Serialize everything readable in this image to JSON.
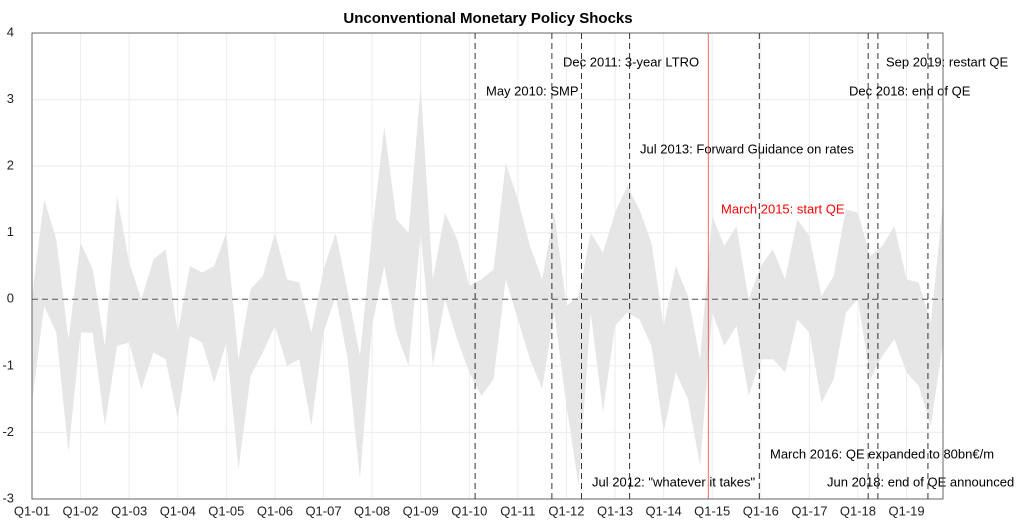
{
  "chart_data": {
    "type": "band",
    "title": "Unconventional Monetary Policy Shocks",
    "x": [
      2001,
      2001.25,
      2001.5,
      2001.75,
      2002,
      2002.25,
      2002.5,
      2002.75,
      2003,
      2003.25,
      2003.5,
      2003.75,
      2004,
      2004.25,
      2004.5,
      2004.75,
      2005,
      2005.25,
      2005.5,
      2005.75,
      2006,
      2006.25,
      2006.5,
      2006.75,
      2007,
      2007.25,
      2007.5,
      2007.75,
      2008,
      2008.25,
      2008.5,
      2008.75,
      2009,
      2009.25,
      2009.5,
      2009.75,
      2010,
      2010.25,
      2010.5,
      2010.75,
      2011,
      2011.25,
      2011.5,
      2011.75,
      2012,
      2012.25,
      2012.5,
      2012.75,
      2013,
      2013.25,
      2013.5,
      2013.75,
      2014,
      2014.25,
      2014.5,
      2014.75,
      2015,
      2015.25,
      2015.5,
      2015.75,
      2016,
      2016.25,
      2016.5,
      2016.75,
      2017,
      2017.25,
      2017.5,
      2017.75,
      2018,
      2018.25,
      2018.5,
      2018.75,
      2019,
      2019.25,
      2019.5,
      2019.75
    ],
    "upper": [
      0.05,
      1.5,
      0.9,
      -0.6,
      0.85,
      0.45,
      -0.7,
      1.55,
      0.55,
      0.0,
      0.6,
      0.75,
      -0.5,
      0.5,
      0.4,
      0.5,
      1.0,
      -0.9,
      0.15,
      0.35,
      1.0,
      0.3,
      0.25,
      -0.5,
      0.45,
      1.0,
      0.1,
      -0.85,
      1.0,
      2.6,
      1.2,
      1.0,
      3.2,
      0.3,
      1.3,
      0.9,
      0.2,
      0.3,
      0.45,
      2.05,
      1.5,
      0.8,
      0.3,
      1.3,
      -0.1,
      0.05,
      1.0,
      0.7,
      1.3,
      1.7,
      1.35,
      0.85,
      -0.4,
      0.5,
      0.05,
      -0.9,
      1.25,
      0.8,
      1.1,
      0.0,
      0.5,
      0.75,
      0.3,
      1.2,
      0.95,
      0.05,
      0.35,
      1.35,
      1.3,
      0.65,
      0.8,
      1.1,
      0.3,
      0.25,
      -0.35,
      1.45
    ],
    "lower": [
      -1.55,
      -0.1,
      -0.5,
      -2.3,
      -0.5,
      -0.5,
      -1.9,
      -0.7,
      -0.65,
      -1.35,
      -0.8,
      -0.9,
      -1.8,
      -0.55,
      -0.65,
      -1.25,
      -0.65,
      -2.55,
      -1.15,
      -0.8,
      -0.4,
      -1.0,
      -0.9,
      -1.9,
      -0.5,
      0.05,
      -0.9,
      -2.7,
      -0.4,
      0.5,
      -0.5,
      -1.0,
      1.0,
      -1.0,
      0.0,
      -0.6,
      -1.1,
      -1.45,
      -1.2,
      0.3,
      -0.3,
      -0.9,
      -1.35,
      -0.2,
      -1.6,
      -2.8,
      -0.2,
      -1.7,
      -0.4,
      -0.2,
      -0.3,
      -0.7,
      -2.0,
      -1.1,
      -1.5,
      -2.5,
      -0.2,
      -0.7,
      -0.4,
      -1.45,
      -0.9,
      -0.9,
      -1.1,
      -0.3,
      -0.5,
      -1.55,
      -1.2,
      -0.2,
      0.0,
      -1.2,
      -0.85,
      -0.6,
      -1.1,
      -1.3,
      -1.9,
      -0.65
    ],
    "color": "#e6e6e6",
    "xlim": [
      2001,
      2019.75
    ],
    "ylim": [
      -3,
      4
    ],
    "xticks": [
      {
        "value": 2001,
        "label": "Q1-01"
      },
      {
        "value": 2002,
        "label": "Q1-02"
      },
      {
        "value": 2003,
        "label": "Q1-03"
      },
      {
        "value": 2004,
        "label": "Q1-04"
      },
      {
        "value": 2005,
        "label": "Q1-05"
      },
      {
        "value": 2006,
        "label": "Q1-06"
      },
      {
        "value": 2007,
        "label": "Q1-07"
      },
      {
        "value": 2008,
        "label": "Q1-08"
      },
      {
        "value": 2009,
        "label": "Q1-09"
      },
      {
        "value": 2010,
        "label": "Q1-10"
      },
      {
        "value": 2011,
        "label": "Q1-11"
      },
      {
        "value": 2012,
        "label": "Q1-12"
      },
      {
        "value": 2013,
        "label": "Q1-13"
      },
      {
        "value": 2014,
        "label": "Q1-14"
      },
      {
        "value": 2015,
        "label": "Q1-15"
      },
      {
        "value": 2016,
        "label": "Q1-16"
      },
      {
        "value": 2017,
        "label": "Q1-17"
      },
      {
        "value": 2018,
        "label": "Q1-18"
      },
      {
        "value": 2019,
        "label": "Q1-19"
      }
    ],
    "yticks": [
      -3,
      -2,
      -1,
      0,
      1,
      2,
      3,
      4
    ],
    "grid": true,
    "zero_line": true,
    "events": [
      {
        "x": 2010.12,
        "label": "May 2010: SMP",
        "color": "#000000"
      },
      {
        "x": 2011.7,
        "label": "Dec 2011: 3-year LTRO",
        "color": "#000000"
      },
      {
        "x": 2012.31,
        "label": "Jul 2012: \"whatever it takes\"",
        "color": "#000000"
      },
      {
        "x": 2013.3,
        "label": "Jul 2013: Forward Guidance on rates",
        "color": "#000000"
      },
      {
        "x": 2014.92,
        "label": "March 2015: start QE",
        "color": "#ff0000"
      },
      {
        "x": 2015.97,
        "label": "March 2016: QE expanded to 80bn€/m",
        "color": "#000000"
      },
      {
        "x": 2018.21,
        "label": "Jun 2018: end of QE announced",
        "color": "#000000"
      },
      {
        "x": 2018.41,
        "label": "Dec 2018: end of QE",
        "color": "#000000"
      },
      {
        "x": 2019.44,
        "label": "Sep 2019: restart QE",
        "color": "#000000"
      }
    ]
  }
}
